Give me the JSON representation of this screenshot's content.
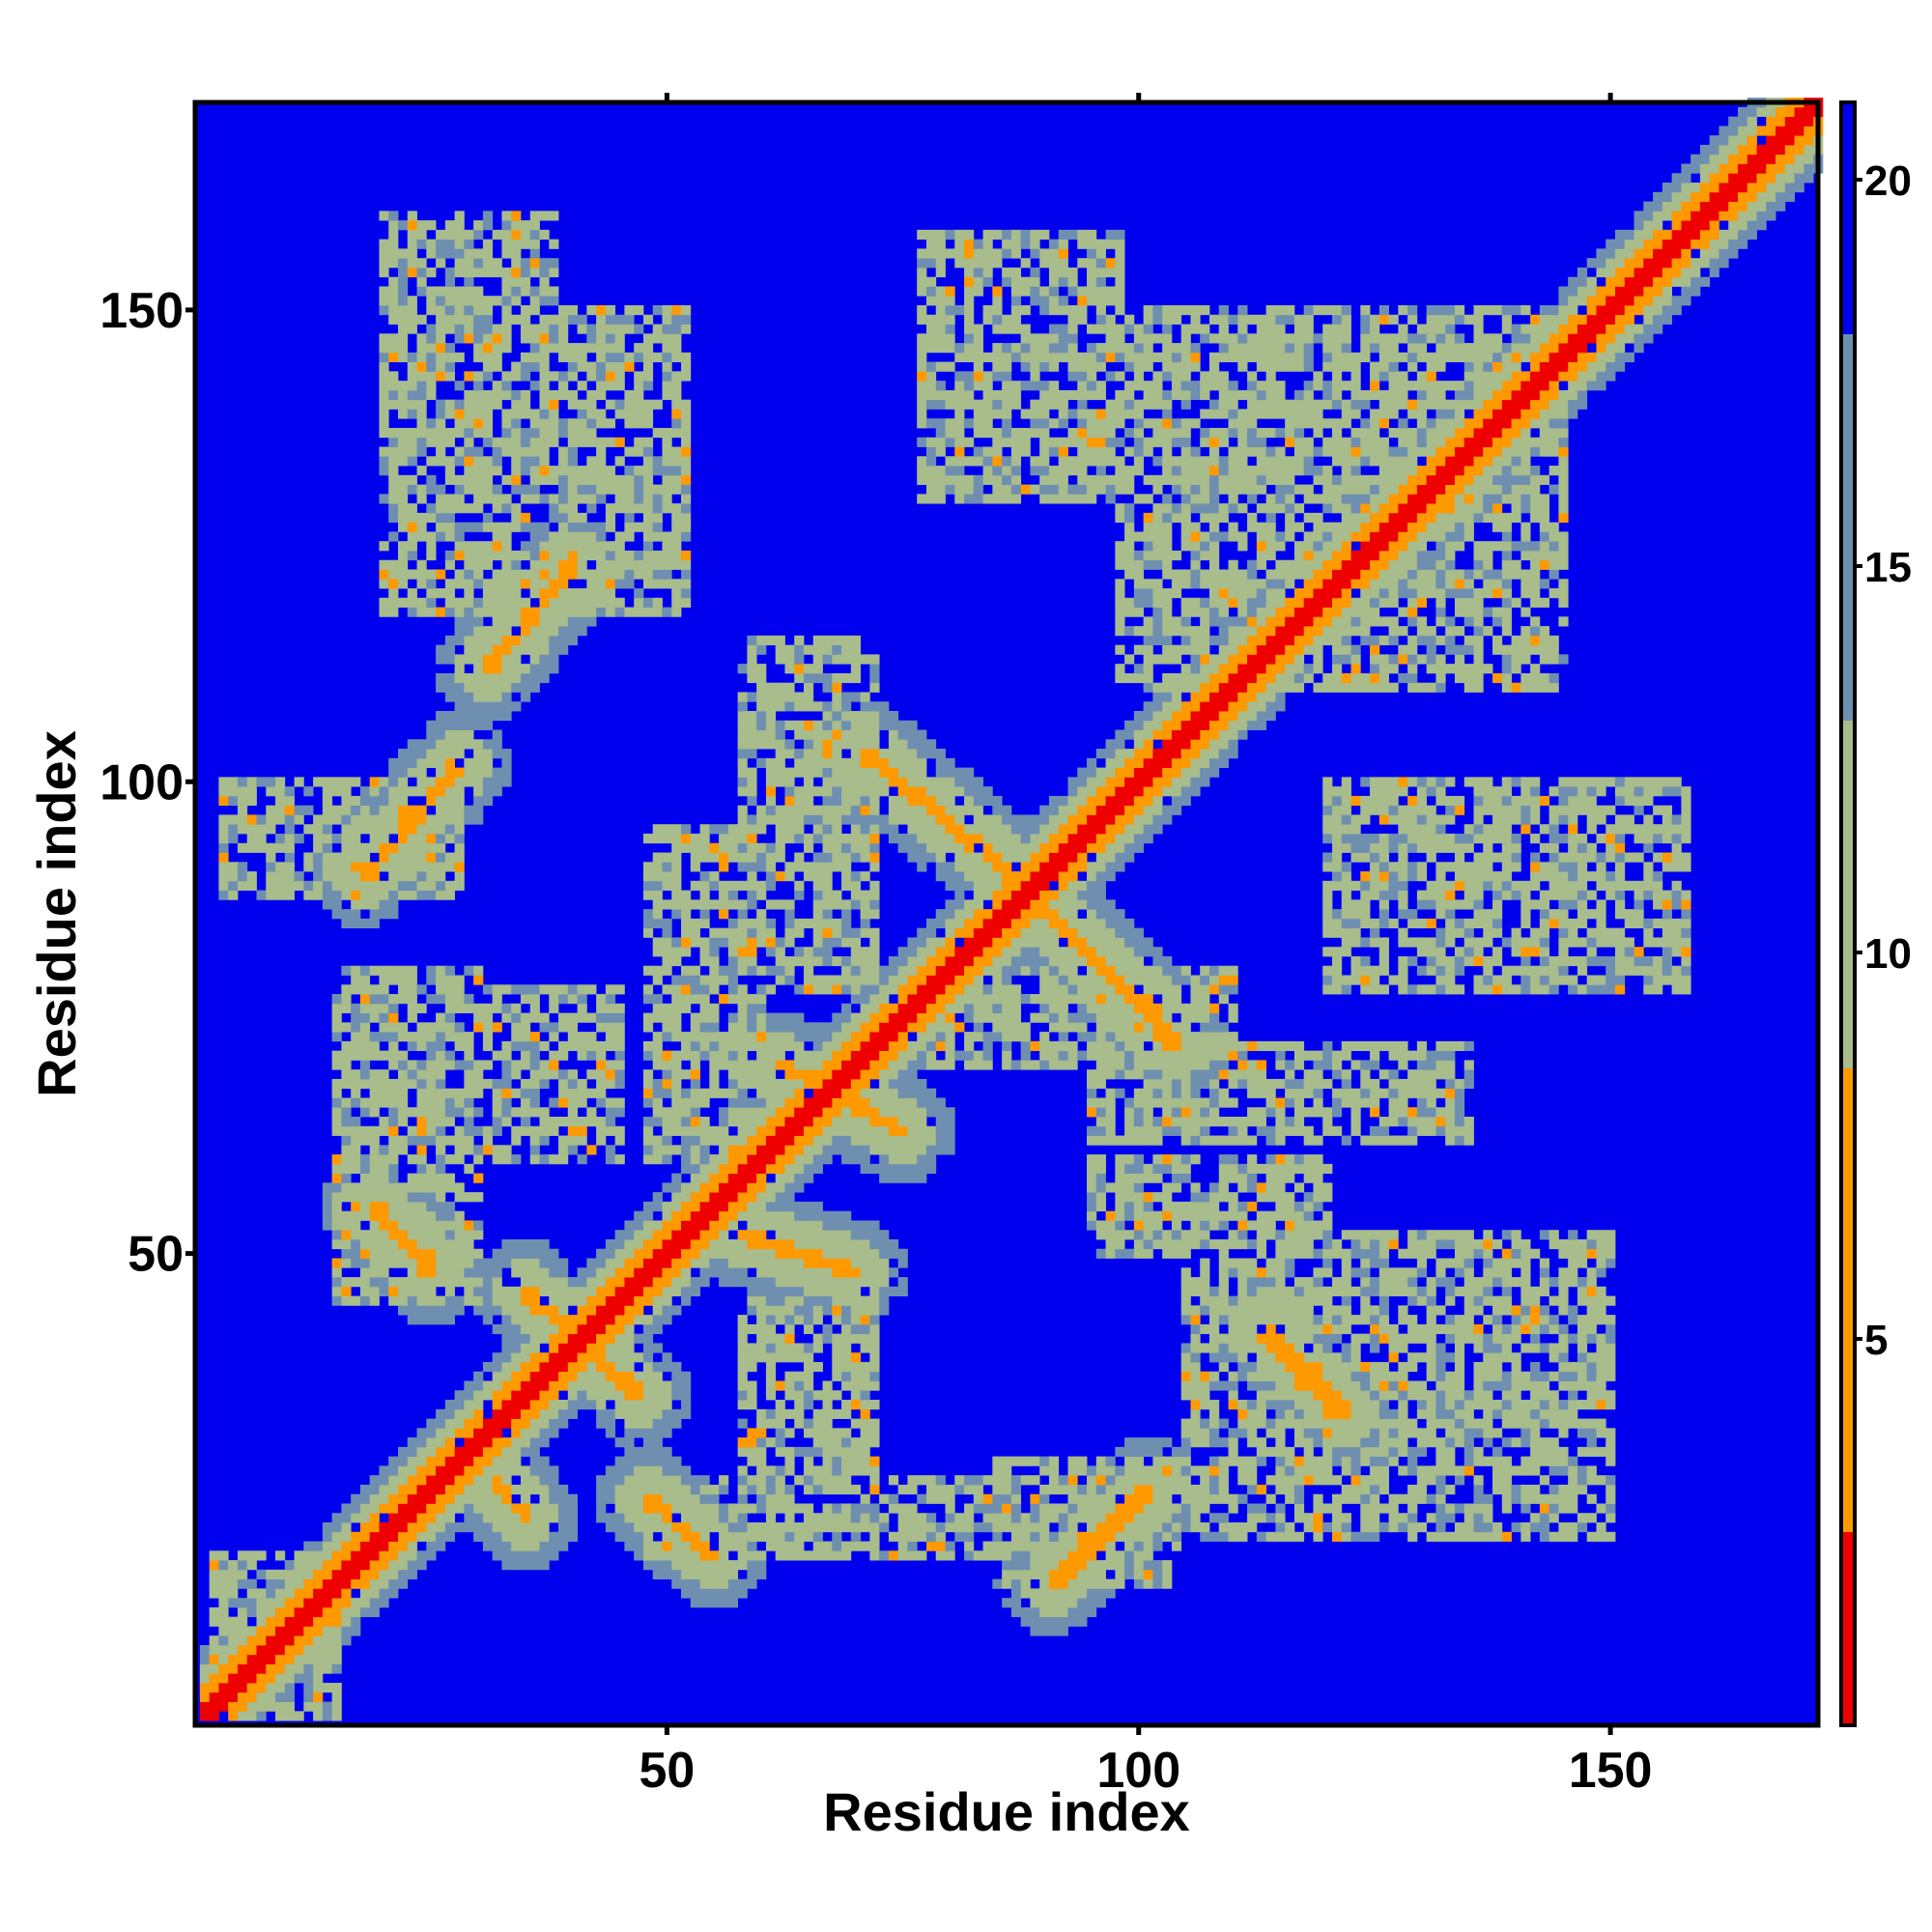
{
  "chart_data": {
    "type": "heatmap",
    "title": "",
    "xlabel": "Residue index",
    "ylabel": "Residue index",
    "xlim": [
      1,
      172
    ],
    "ylim": [
      1,
      172
    ],
    "xticks": [
      50,
      100,
      150
    ],
    "yticks": [
      50,
      100,
      150
    ],
    "colorbar": {
      "range": [
        0,
        21
      ],
      "ticks": [
        5,
        10,
        15,
        20
      ]
    },
    "colors": {
      "background": "#0000ee",
      "near": "#ee0000",
      "close": "#ff9900",
      "mid": "#a8bc8c",
      "far": "#6f8fb0"
    },
    "diagonal_width": 2,
    "contact_features": [
      {
        "x": [
          18,
          28
        ],
        "y": [
          90,
          102
        ],
        "value": 6
      },
      {
        "x": [
          31,
          40
        ],
        "y": [
          112,
          123
        ],
        "value": 6
      },
      {
        "x": [
          71,
          88
        ],
        "y": [
          103,
          89
        ],
        "value": 6
      },
      {
        "x": [
          88,
          104
        ],
        "y": [
          89,
          72
        ],
        "value": 6
      },
      {
        "x": [
          19,
          25
        ],
        "y": [
          55,
          48
        ],
        "value": 6
      },
      {
        "x": [
          35,
          47
        ],
        "y": [
          46,
          35
        ],
        "value": 6
      },
      {
        "x": [
          48,
          55
        ],
        "y": [
          24,
          18
        ],
        "value": 6
      },
      {
        "x": [
          91,
          101
        ],
        "y": [
          15,
          25
        ],
        "value": 6
      },
      {
        "x": [
          113,
          122
        ],
        "y": [
          42,
          33
        ],
        "value": 6
      },
      {
        "x": [
          32,
          35
        ],
        "y": [
          26,
          22
        ],
        "value": 6
      },
      {
        "x": [
          58,
          70
        ],
        "y": [
          52,
          48
        ],
        "value": 6
      },
      {
        "x": [
          62,
          75
        ],
        "y": [
          70,
          63
        ],
        "value": 7
      }
    ],
    "mid_regions": [
      {
        "x": [
          20,
          38
        ],
        "y": [
          118,
          160
        ]
      },
      {
        "x": [
          38,
          52
        ],
        "y": [
          118,
          150
        ]
      },
      {
        "x": [
          77,
          98
        ],
        "y": [
          130,
          158
        ]
      },
      {
        "x": [
          58,
          72
        ],
        "y": [
          78,
          115
        ]
      },
      {
        "x": [
          48,
          60
        ],
        "y": [
          60,
          95
        ]
      },
      {
        "x": [
          15,
          30
        ],
        "y": [
          45,
          80
        ]
      },
      {
        "x": [
          3,
          28
        ],
        "y": [
          88,
          100
        ]
      },
      {
        "x": [
          120,
          158
        ],
        "y": [
          78,
          100
        ]
      },
      {
        "x": [
          105,
          150
        ],
        "y": [
          20,
          52
        ]
      },
      {
        "x": [
          85,
          104
        ],
        "y": [
          15,
          28
        ]
      },
      {
        "x": [
          48,
          88
        ],
        "y": [
          18,
          26
        ]
      },
      {
        "x": [
          58,
          72
        ],
        "y": [
          25,
          45
        ]
      },
      {
        "x": [
          98,
          145
        ],
        "y": [
          110,
          150
        ]
      },
      {
        "x": [
          95,
          135
        ],
        "y": [
          62,
          72
        ]
      },
      {
        "x": [
          2,
          15
        ],
        "y": [
          1,
          18
        ]
      },
      {
        "x": [
          20,
          45
        ],
        "y": [
          60,
          78
        ]
      },
      {
        "x": [
          78,
          110
        ],
        "y": [
          70,
          80
        ]
      },
      {
        "x": [
          95,
          120
        ],
        "y": [
          50,
          60
        ]
      }
    ]
  }
}
